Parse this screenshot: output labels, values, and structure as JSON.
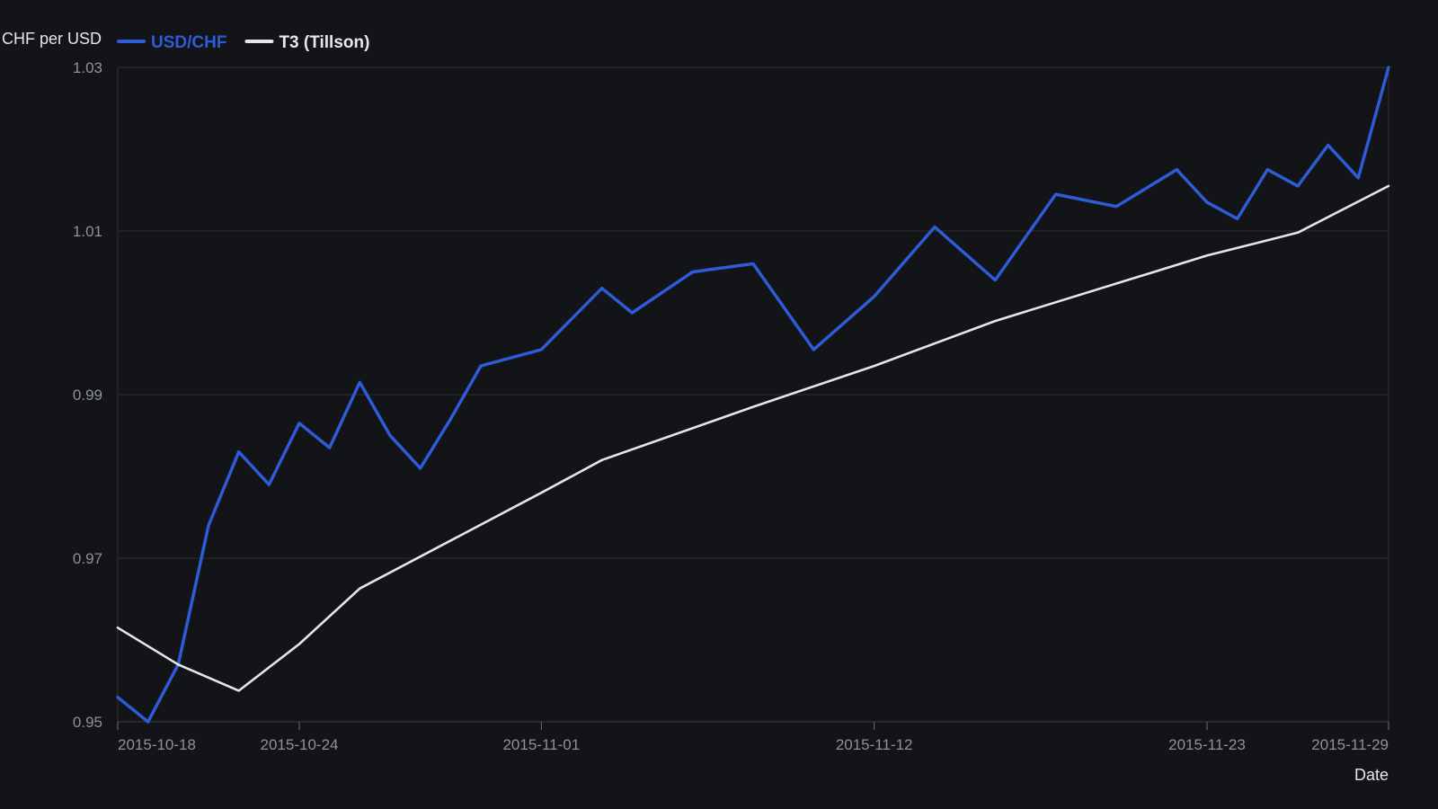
{
  "chart_data": {
    "type": "line",
    "ylabel": "CHF per USD",
    "xlabel": "Date",
    "ylim": [
      0.95,
      1.03
    ],
    "y_ticks": [
      "0.95",
      "0.97",
      "0.99",
      "1.01",
      "1.03"
    ],
    "x_ticks": [
      "2015-10-18",
      "2015-10-24",
      "2015-11-01",
      "2015-11-12",
      "2015-11-23",
      "2015-11-29"
    ],
    "grid": true,
    "legend_position": "top-left",
    "x": [
      "2015-10-18",
      "2015-10-19",
      "2015-10-20",
      "2015-10-21",
      "2015-10-22",
      "2015-10-23",
      "2015-10-24",
      "2015-10-25",
      "2015-10-26",
      "2015-10-27",
      "2015-10-28",
      "2015-10-29",
      "2015-10-30",
      "2015-10-31",
      "2015-11-01",
      "2015-11-02",
      "2015-11-03",
      "2015-11-04",
      "2015-11-05",
      "2015-11-06",
      "2015-11-07",
      "2015-11-08",
      "2015-11-09",
      "2015-11-10",
      "2015-11-11",
      "2015-11-12",
      "2015-11-13",
      "2015-11-14",
      "2015-11-15",
      "2015-11-16",
      "2015-11-17",
      "2015-11-18",
      "2015-11-19",
      "2015-11-20",
      "2015-11-21",
      "2015-11-22",
      "2015-11-23",
      "2015-11-24",
      "2015-11-25",
      "2015-11-26",
      "2015-11-27",
      "2015-11-28",
      "2015-11-29"
    ],
    "series": [
      {
        "name": "USD/CHF",
        "color": "#2e5bd6",
        "values": [
          0.953,
          0.95,
          0.957,
          0.974,
          0.983,
          0.979,
          0.9865,
          0.9835,
          0.9915,
          0.985,
          0.981,
          0.987,
          0.9935,
          null,
          0.9955,
          null,
          1.003,
          1.0,
          null,
          1.005,
          null,
          1.006,
          null,
          0.9955,
          null,
          1.002,
          null,
          1.0105,
          null,
          1.004,
          null,
          1.0145,
          null,
          1.013,
          null,
          1.0175,
          1.0135,
          1.0115,
          1.0175,
          1.0155,
          1.0205,
          1.0165,
          1.03
        ]
      },
      {
        "name": "T3 (Tillson)",
        "color": "#e6e6e6",
        "values": [
          0.9615,
          null,
          0.957,
          null,
          0.9538,
          null,
          0.9595,
          null,
          0.9663,
          null,
          null,
          null,
          null,
          null,
          0.978,
          null,
          0.982,
          null,
          null,
          null,
          null,
          0.9885,
          null,
          null,
          null,
          0.9935,
          null,
          null,
          null,
          0.999,
          null,
          null,
          null,
          null,
          null,
          null,
          1.007,
          null,
          null,
          1.0098,
          null,
          null,
          1.0155
        ]
      }
    ]
  }
}
